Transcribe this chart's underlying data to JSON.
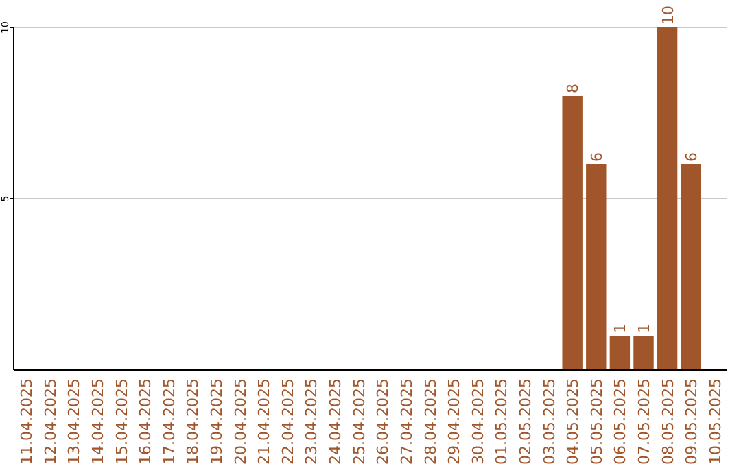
{
  "chart_data": {
    "type": "bar",
    "categories": [
      "11.04.2025",
      "12.04.2025",
      "13.04.2025",
      "14.04.2025",
      "15.04.2025",
      "16.04.2025",
      "17.04.2025",
      "18.04.2025",
      "19.04.2025",
      "20.04.2025",
      "21.04.2025",
      "22.04.2025",
      "23.04.2025",
      "24.04.2025",
      "25.04.2025",
      "26.04.2025",
      "27.04.2025",
      "28.04.2025",
      "29.04.2025",
      "30.04.2025",
      "01.05.2025",
      "02.05.2025",
      "03.05.2025",
      "04.05.2025",
      "05.05.2025",
      "06.05.2025",
      "07.05.2025",
      "08.05.2025",
      "09.05.2025",
      "10.05.2025"
    ],
    "values": [
      0,
      0,
      0,
      0,
      0,
      0,
      0,
      0,
      0,
      0,
      0,
      0,
      0,
      0,
      0,
      0,
      0,
      0,
      0,
      0,
      0,
      0,
      0,
      8,
      6,
      1,
      1,
      10,
      6,
      0
    ],
    "value_labels": [
      null,
      null,
      null,
      null,
      null,
      null,
      null,
      null,
      null,
      null,
      null,
      null,
      null,
      null,
      null,
      null,
      null,
      null,
      null,
      null,
      null,
      null,
      null,
      "8",
      "6",
      "1",
      "1",
      "10",
      "6",
      null
    ],
    "color": "#a0552a",
    "ylim": [
      0,
      10
    ],
    "yticks": [
      5,
      10
    ],
    "grid": "y"
  }
}
